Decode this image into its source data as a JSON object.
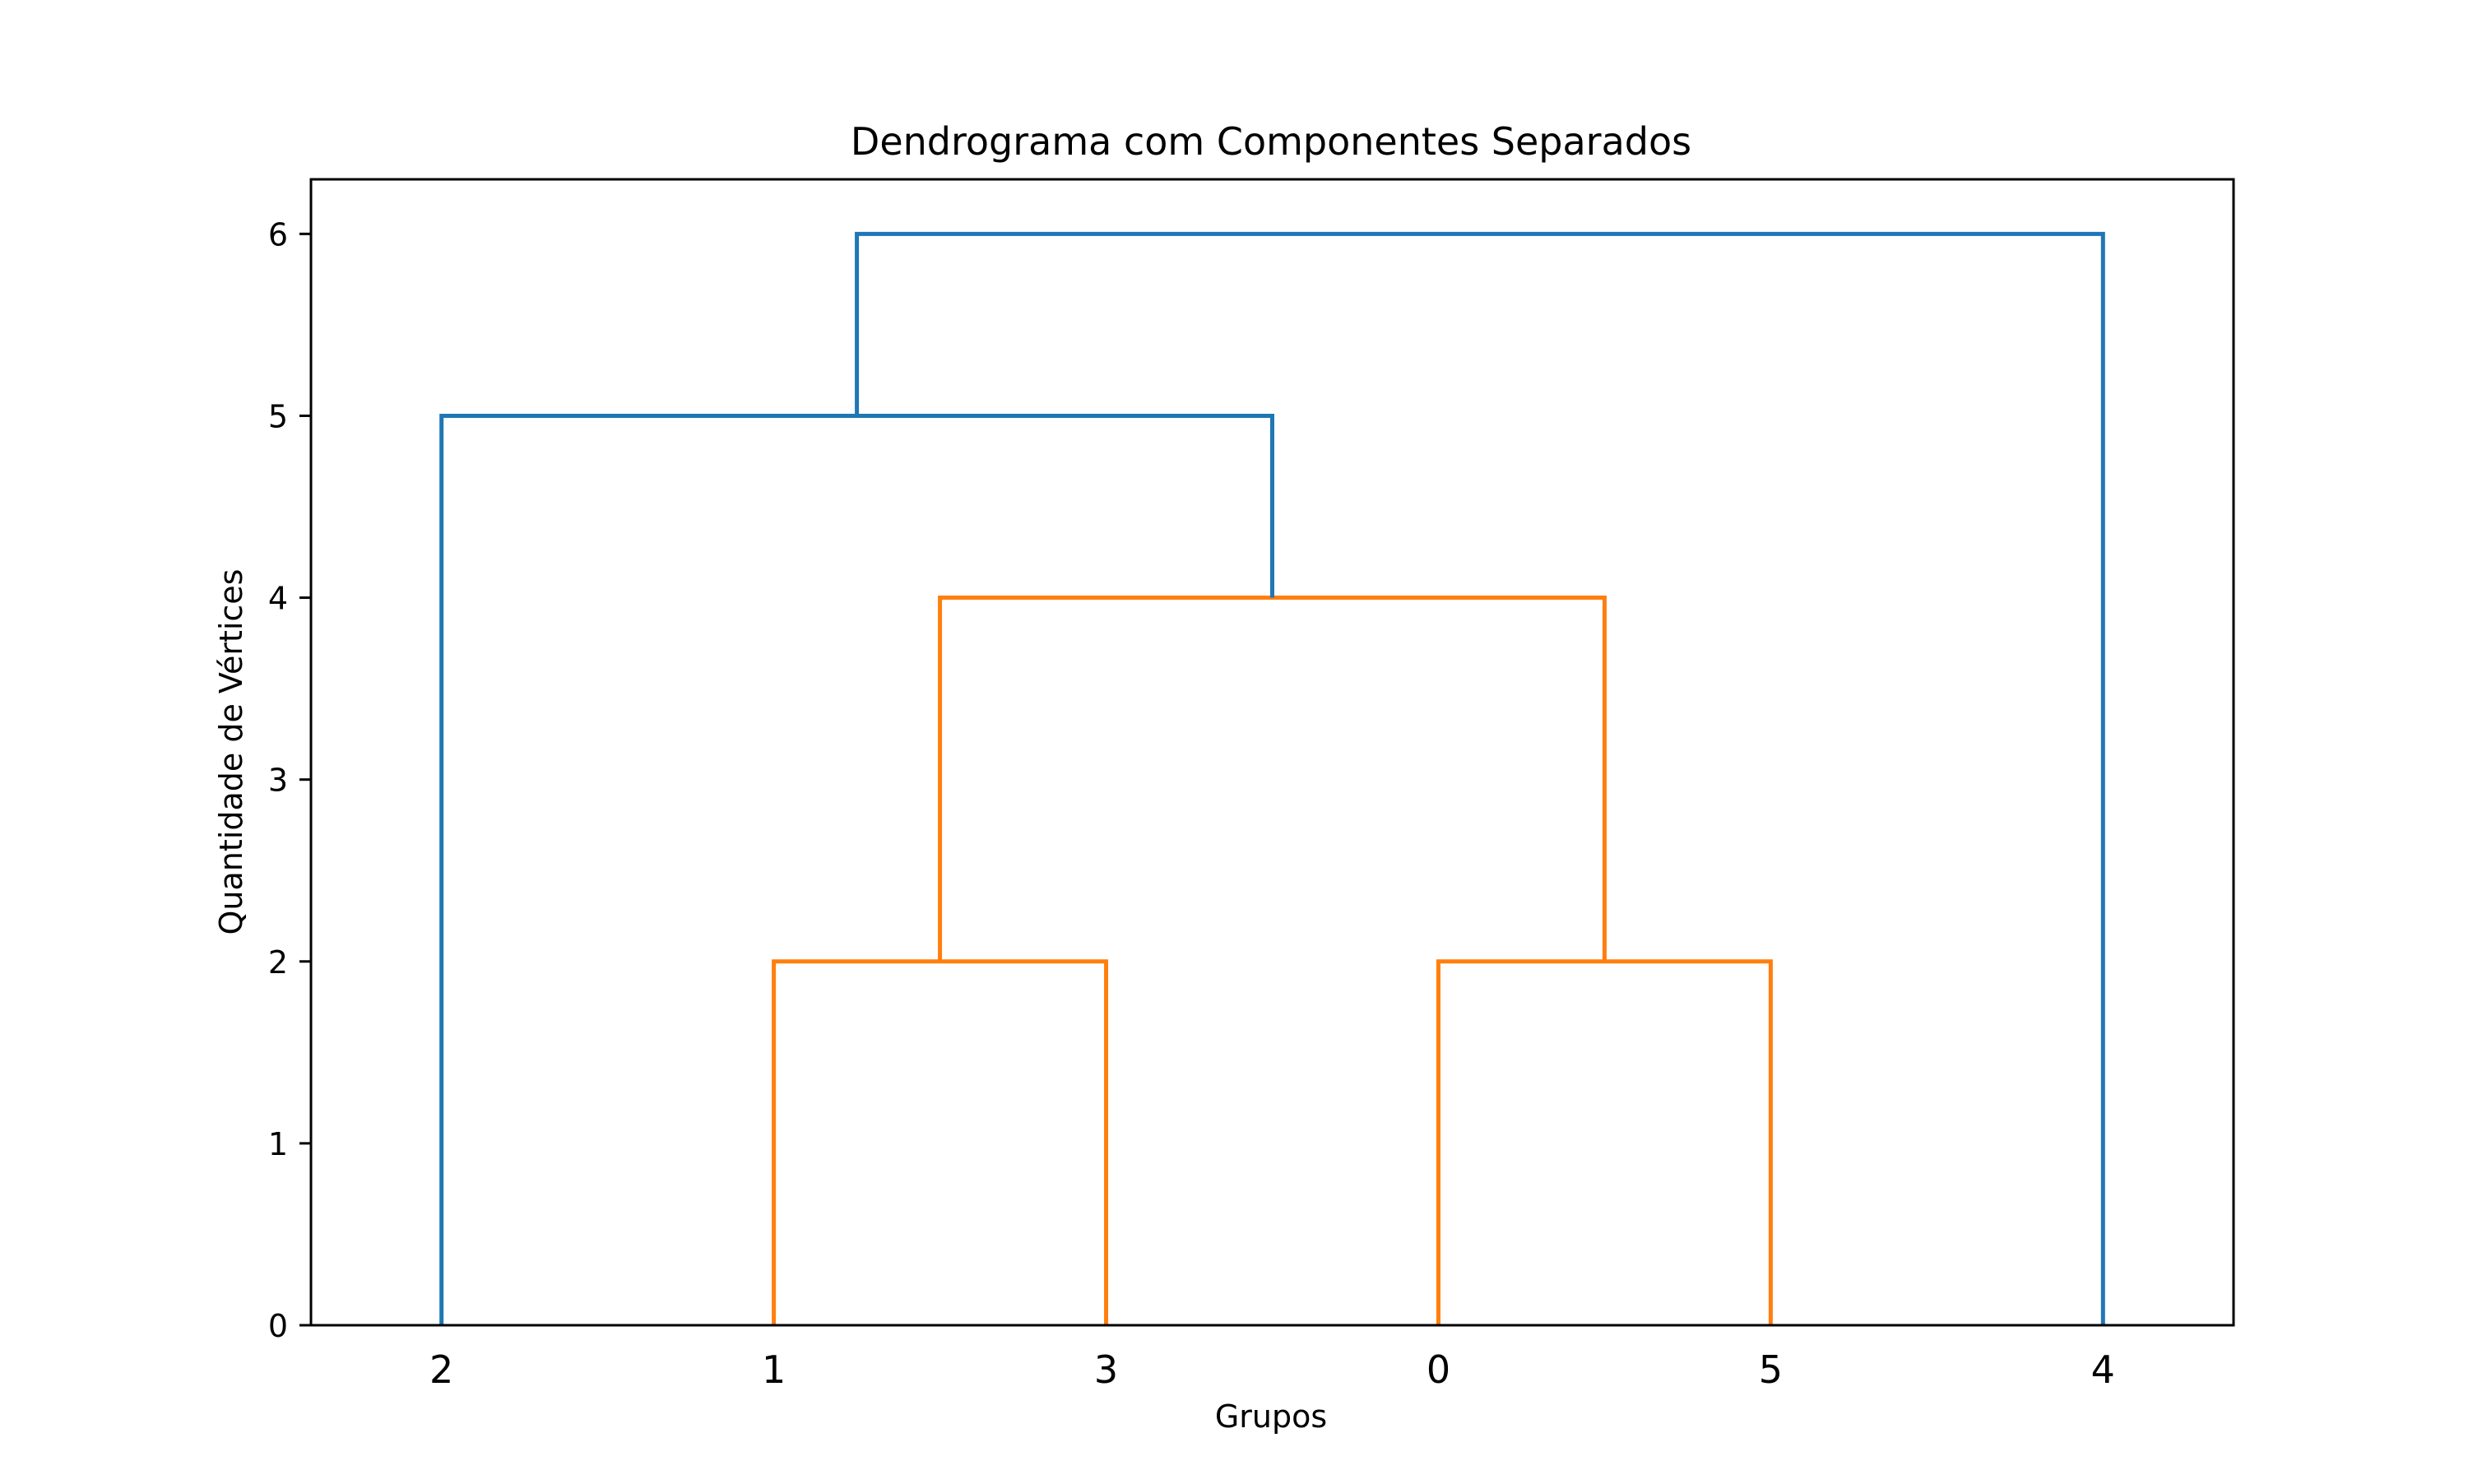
{
  "chart_data": {
    "type": "dendrogram",
    "title": "Dendrograma com Componentes Separados",
    "xlabel": "Grupos",
    "ylabel": "Quantidade de Vértices",
    "leaves": [
      "2",
      "1",
      "3",
      "0",
      "5",
      "4"
    ],
    "ylim": [
      0,
      6.3
    ],
    "yticks": [
      0,
      1,
      2,
      3,
      4,
      5,
      6
    ],
    "grid": false,
    "links": [
      {
        "left": "1",
        "right": "3",
        "height": 2,
        "color": "#ff7f0e"
      },
      {
        "left": "0",
        "right": "5",
        "height": 2,
        "color": "#ff7f0e"
      },
      {
        "left": "(1,3)",
        "right": "(0,5)",
        "height": 4,
        "color": "#ff7f0e"
      },
      {
        "left": "2",
        "right": "((1,3),(0,5))",
        "height": 5,
        "color": "#1f77b4"
      },
      {
        "left": "(2,((1,3),(0,5)))",
        "right": "4",
        "height": 6,
        "color": "#1f77b4"
      }
    ],
    "colors": {
      "above_threshold": "#1f77b4",
      "cluster": "#ff7f0e"
    }
  }
}
